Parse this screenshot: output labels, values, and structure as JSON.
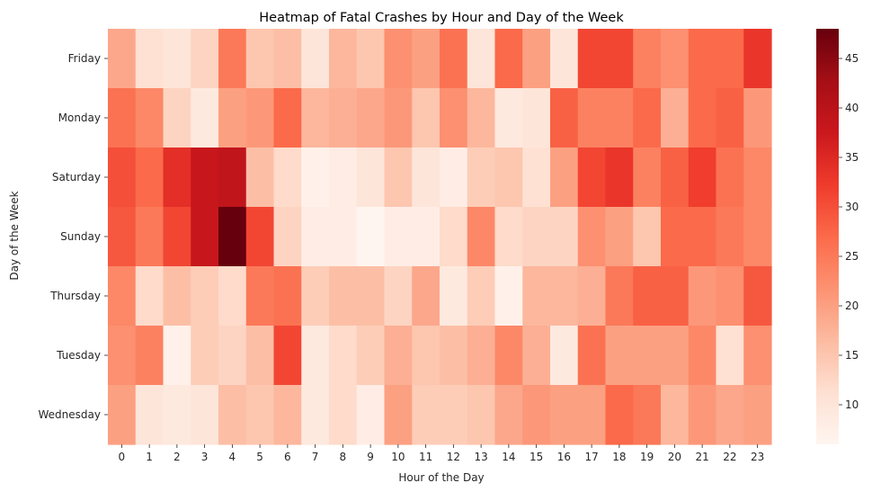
{
  "chart_data": {
    "type": "heatmap",
    "title": "Heatmap of Fatal Crashes by Hour and Day of the Week",
    "xlabel": "Hour of the Day",
    "ylabel": "Day of the Week",
    "x_categories": [
      "0",
      "1",
      "2",
      "3",
      "4",
      "5",
      "6",
      "7",
      "8",
      "9",
      "10",
      "11",
      "12",
      "13",
      "14",
      "15",
      "16",
      "17",
      "18",
      "19",
      "20",
      "21",
      "22",
      "23"
    ],
    "y_categories": [
      "Friday",
      "Monday",
      "Saturday",
      "Sunday",
      "Thursday",
      "Tuesday",
      "Wednesday"
    ],
    "values": [
      [
        19,
        11,
        10,
        13,
        25,
        15,
        16,
        10,
        17,
        15,
        22,
        20,
        26,
        10,
        27,
        20,
        10,
        31,
        31,
        24,
        22,
        27,
        27,
        33
      ],
      [
        26,
        23,
        13,
        9,
        20,
        21,
        27,
        17,
        18,
        19,
        21,
        15,
        22,
        17,
        9,
        10,
        28,
        24,
        24,
        27,
        18,
        27,
        28,
        21
      ],
      [
        30,
        27,
        34,
        38,
        39,
        16,
        12,
        7,
        8,
        10,
        15,
        10,
        8,
        14,
        15,
        11,
        20,
        31,
        33,
        24,
        28,
        32,
        26,
        23
      ],
      [
        29,
        25,
        31,
        38,
        48,
        31,
        13,
        8,
        8,
        6,
        8,
        8,
        12,
        23,
        12,
        13,
        13,
        22,
        20,
        15,
        27,
        27,
        25,
        23
      ],
      [
        23,
        12,
        16,
        14,
        12,
        25,
        26,
        14,
        16,
        16,
        13,
        19,
        9,
        14,
        7,
        17,
        17,
        18,
        25,
        28,
        28,
        21,
        22,
        29
      ],
      [
        22,
        24,
        7,
        14,
        13,
        16,
        31,
        9,
        12,
        14,
        18,
        15,
        16,
        18,
        23,
        18,
        9,
        26,
        20,
        20,
        20,
        23,
        11,
        22
      ],
      [
        20,
        10,
        9,
        10,
        16,
        15,
        17,
        9,
        12,
        8,
        20,
        14,
        14,
        15,
        19,
        21,
        20,
        20,
        27,
        25,
        17,
        21,
        19,
        20
      ]
    ],
    "colorbar": {
      "colormap": "Reds",
      "vmin": 6,
      "vmax": 48,
      "ticks": [
        "10",
        "15",
        "20",
        "25",
        "30",
        "35",
        "40",
        "45"
      ]
    },
    "grid": false,
    "legend": "colorbar-right"
  }
}
